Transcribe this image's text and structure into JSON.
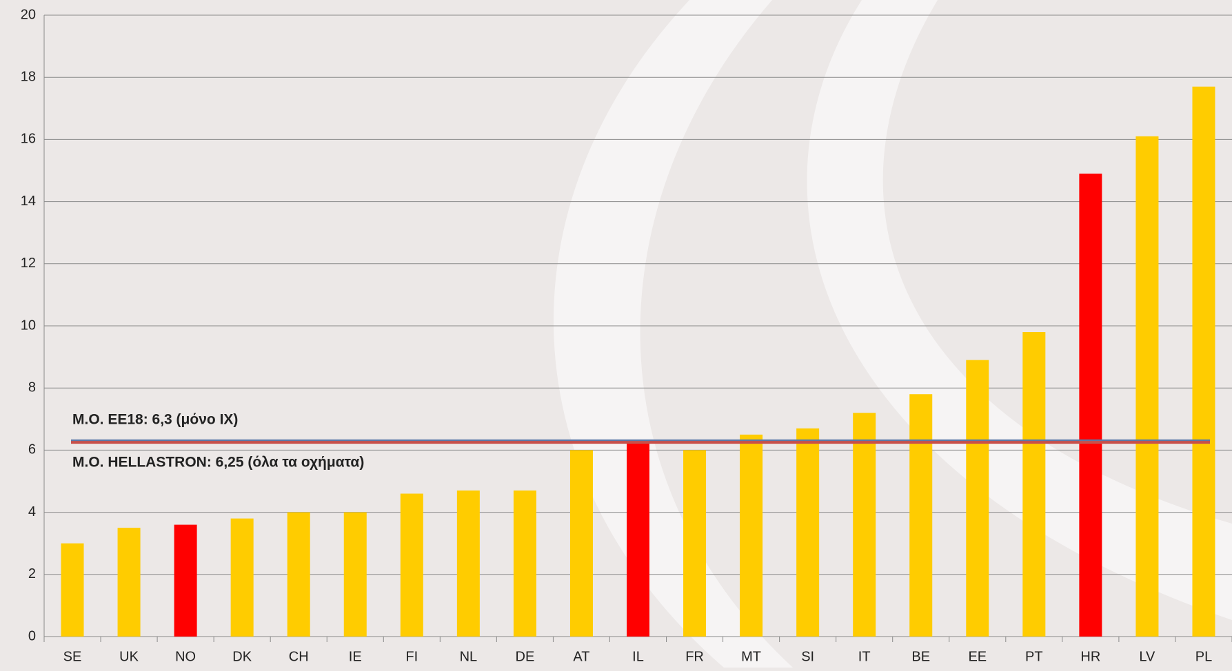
{
  "chart_data": {
    "type": "bar",
    "categories": [
      "SE",
      "UK",
      "NO",
      "DK",
      "CH",
      "IE",
      "FI",
      "NL",
      "DE",
      "AT",
      "IL",
      "FR",
      "MT",
      "SI",
      "IT",
      "BE",
      "EE",
      "PT",
      "HR",
      "LV",
      "PL"
    ],
    "values": [
      3,
      3.5,
      3.6,
      3.8,
      4,
      4,
      4.6,
      4.7,
      4.7,
      6,
      6.3,
      6,
      6.5,
      6.7,
      7.2,
      7.8,
      8.9,
      9.8,
      14.9,
      16.1,
      17.7
    ],
    "colors": [
      "#ffcc00",
      "#ffcc00",
      "#ff0000",
      "#ffcc00",
      "#ffcc00",
      "#ffcc00",
      "#ffcc00",
      "#ffcc00",
      "#ffcc00",
      "#ffcc00",
      "#ff0000",
      "#ffcc00",
      "#ffcc00",
      "#ffcc00",
      "#ffcc00",
      "#ffcc00",
      "#ffcc00",
      "#ffcc00",
      "#ff0000",
      "#ffcc00",
      "#ffcc00"
    ],
    "ylim": [
      0,
      20
    ],
    "yticks": [
      0,
      2,
      4,
      6,
      8,
      10,
      12,
      14,
      16,
      18,
      20
    ],
    "grid": true,
    "reference_lines": [
      {
        "label": "Μ.Ο. ΕΕ18: 6,3 (μόνο ΙΧ)",
        "value": 6.3,
        "color": "#5a78a8"
      },
      {
        "label": "Μ.Ο. HELLASTRON: 6,25 (όλα τα οχήματα)",
        "value": 6.25,
        "color": "#c8504a"
      }
    ]
  }
}
